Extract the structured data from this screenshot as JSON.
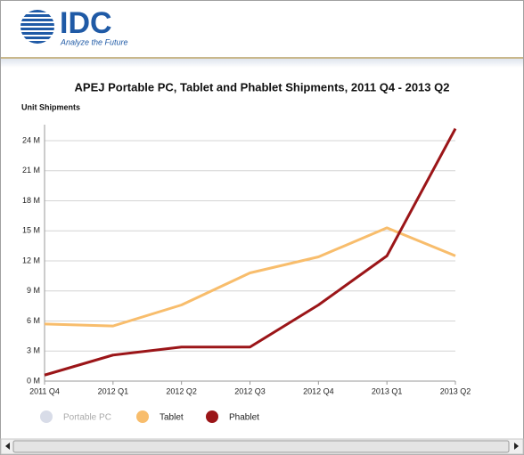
{
  "header": {
    "brand": "IDC",
    "tagline": "Analyze the Future"
  },
  "chart_data": {
    "type": "line",
    "title": "APEJ Portable PC, Tablet and Phablet Shipments, 2011 Q4 - 2013 Q2",
    "y_label": "Unit Shipments",
    "categories": [
      "2011 Q4",
      "2012 Q1",
      "2012 Q2",
      "2012 Q3",
      "2012 Q4",
      "2013 Q1",
      "2013 Q2"
    ],
    "series": [
      {
        "name": "Portable PC",
        "color": "#d8dce8",
        "visible": false,
        "values": [
          null,
          null,
          null,
          null,
          null,
          null,
          null
        ]
      },
      {
        "name": "Tablet",
        "color": "#f8bd6c",
        "visible": true,
        "values": [
          5.7,
          5.5,
          7.6,
          10.8,
          12.4,
          15.3,
          12.5
        ]
      },
      {
        "name": "Phablet",
        "color": "#9b1518",
        "visible": true,
        "values": [
          0.6,
          2.6,
          3.4,
          3.4,
          7.6,
          12.5,
          25.2
        ]
      }
    ],
    "ylim": [
      0,
      25.6
    ],
    "yticks": [
      {
        "value": 0,
        "label": "0 M"
      },
      {
        "value": 3,
        "label": "3 M"
      },
      {
        "value": 6,
        "label": "6 M"
      },
      {
        "value": 9,
        "label": "9 M"
      },
      {
        "value": 12,
        "label": "12 M"
      },
      {
        "value": 15,
        "label": "15 M"
      },
      {
        "value": 18,
        "label": "18 M"
      },
      {
        "value": 21,
        "label": "21 M"
      },
      {
        "value": 24,
        "label": "24 M"
      }
    ],
    "grid": true
  }
}
